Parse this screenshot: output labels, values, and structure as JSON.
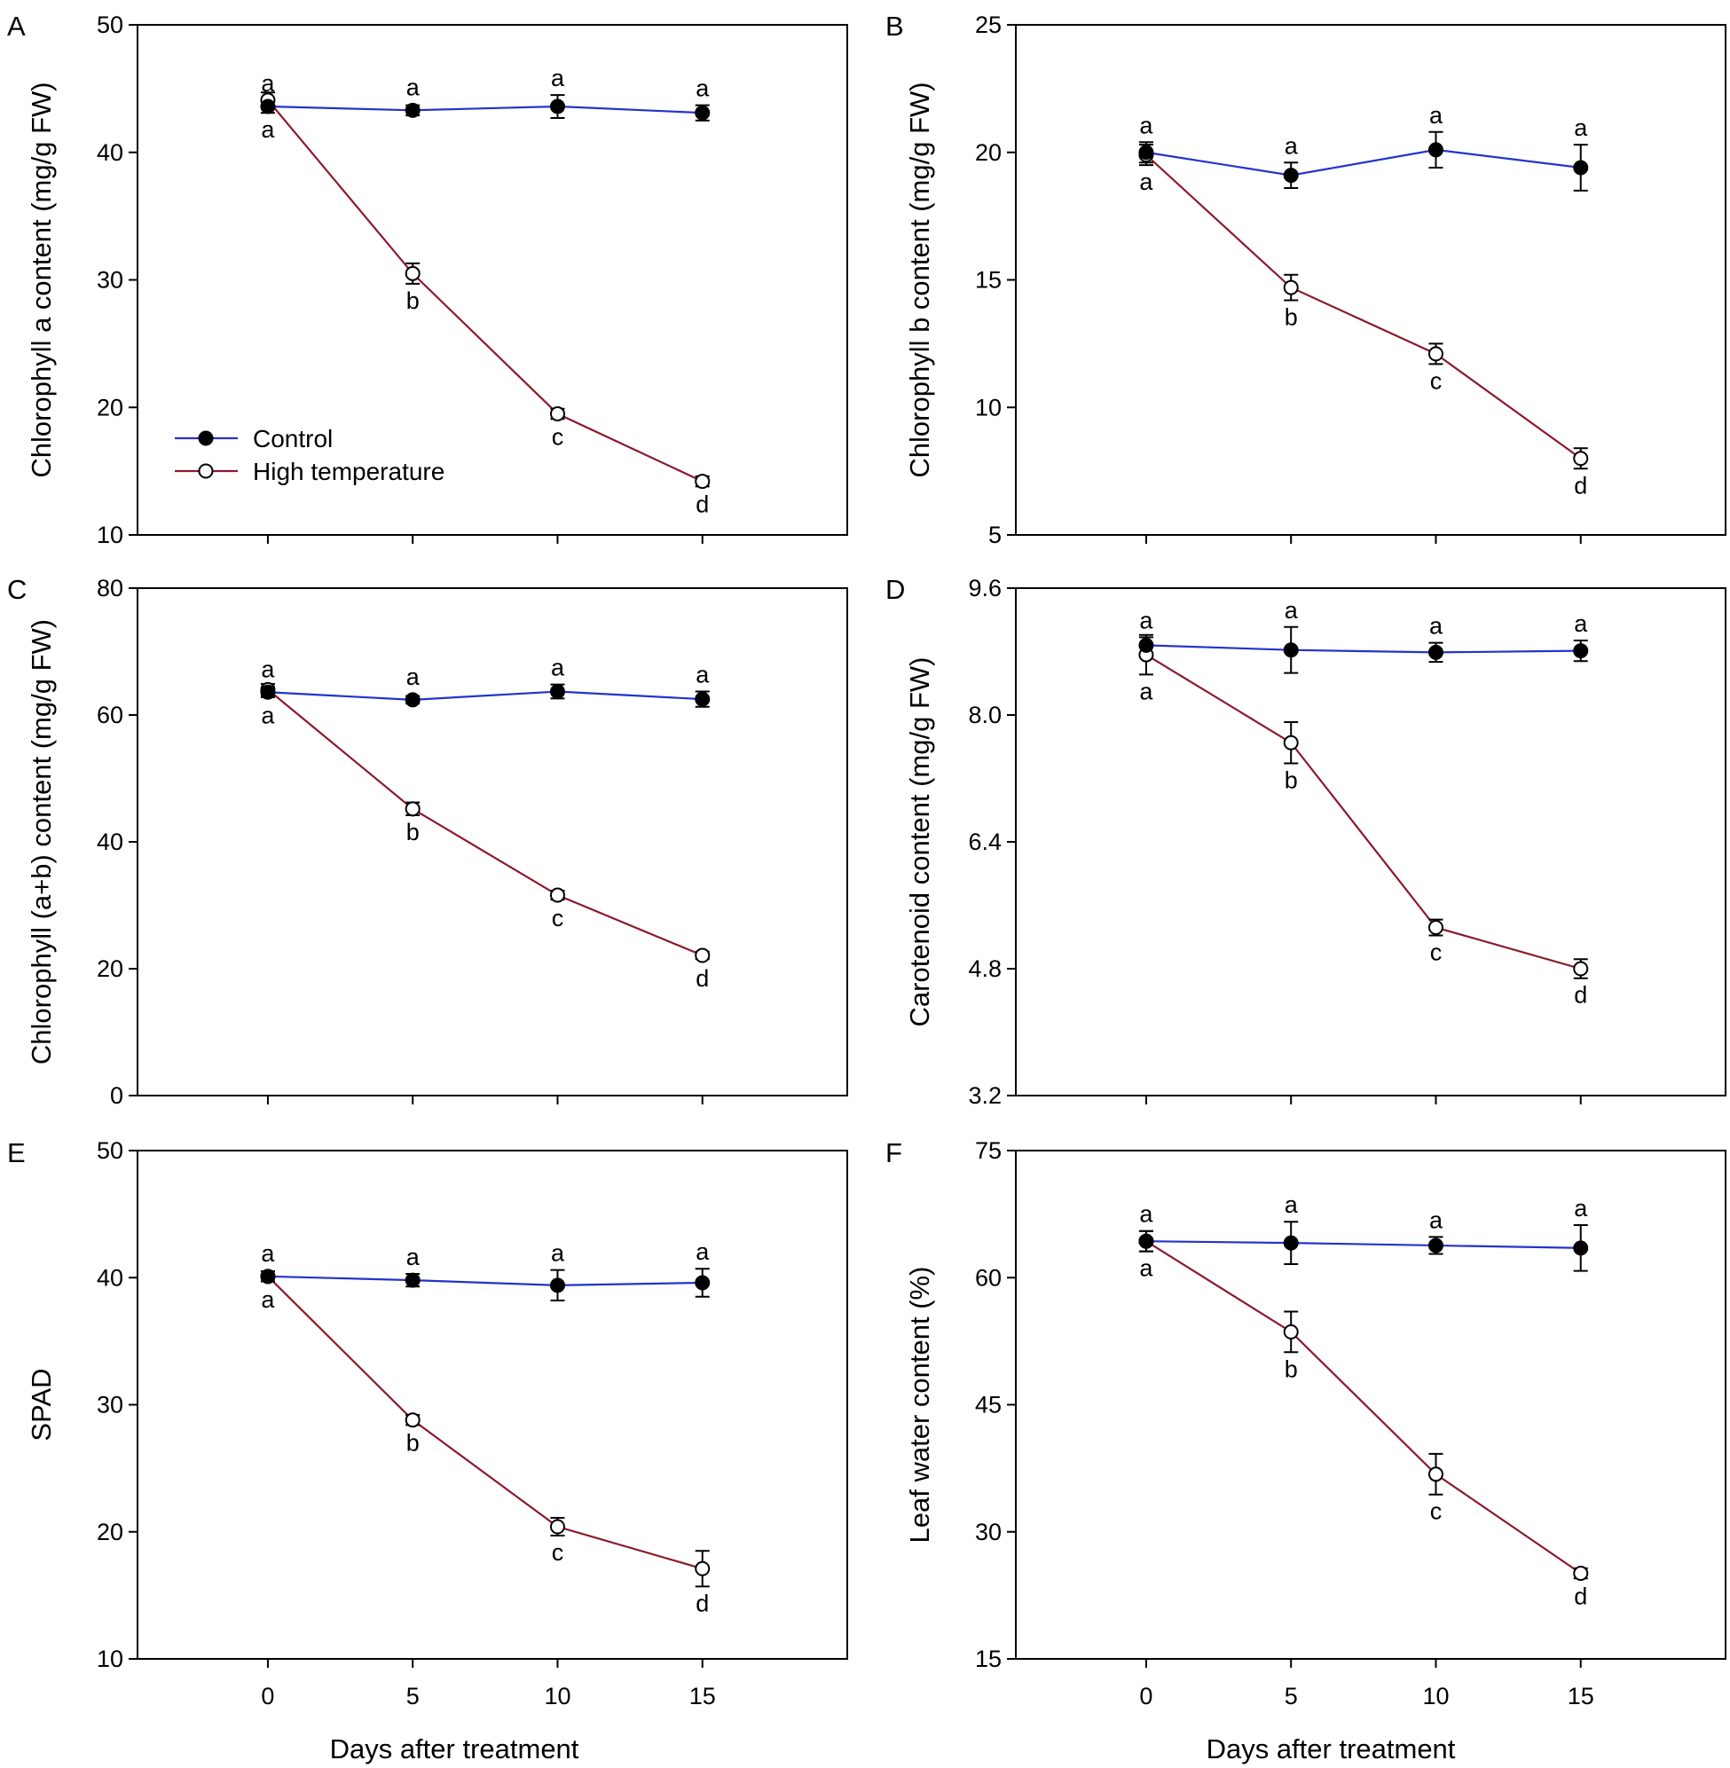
{
  "chart_data": [
    {
      "panel": "A",
      "type": "line",
      "ylabel": "Chlorophyll a content (mg/g FW)",
      "xlabel": "",
      "x": [
        0,
        5,
        10,
        15
      ],
      "xticks": [
        "0",
        "5",
        "10",
        "15"
      ],
      "xlim": [
        -4.5,
        20
      ],
      "ylim": [
        10,
        50
      ],
      "yticks": [
        "10",
        "20",
        "30",
        "40",
        "50"
      ],
      "series": [
        {
          "name": "Control",
          "values": [
            43.6,
            43.3,
            43.6,
            43.1
          ],
          "err": [
            0.5,
            0.4,
            0.9,
            0.6
          ],
          "letters": [
            "a",
            "a",
            "a",
            "a"
          ]
        },
        {
          "name": "High temperature",
          "values": [
            44.1,
            30.5,
            19.5,
            14.2
          ],
          "err": [
            0.6,
            0.8,
            0.4,
            0.4
          ],
          "letters": [
            "a",
            "b",
            "c",
            "d"
          ]
        }
      ]
    },
    {
      "panel": "B",
      "type": "line",
      "ylabel": "Chlorophyll b content (mg/g FW)",
      "xlabel": "",
      "x": [
        0,
        5,
        10,
        15
      ],
      "xticks": [
        "0",
        "5",
        "10",
        "15"
      ],
      "xlim": [
        -4.5,
        20
      ],
      "ylim": [
        5,
        25
      ],
      "yticks": [
        "5",
        "10",
        "15",
        "20",
        "25"
      ],
      "series": [
        {
          "name": "Control",
          "values": [
            20.0,
            19.1,
            20.1,
            19.4
          ],
          "err": [
            0.4,
            0.5,
            0.7,
            0.9
          ],
          "letters": [
            "a",
            "a",
            "a",
            "a"
          ]
        },
        {
          "name": "High temperature",
          "values": [
            19.9,
            14.7,
            12.1,
            8.0
          ],
          "err": [
            0.4,
            0.5,
            0.4,
            0.4
          ],
          "letters": [
            "a",
            "b",
            "c",
            "d"
          ]
        }
      ]
    },
    {
      "panel": "C",
      "type": "line",
      "ylabel": "Chlorophyll (a+b) content (mg/g FW)",
      "xlabel": "",
      "x": [
        0,
        5,
        10,
        15
      ],
      "xticks": [
        "0",
        "5",
        "10",
        "15"
      ],
      "xlim": [
        -4.5,
        20
      ],
      "ylim": [
        0,
        80
      ],
      "yticks": [
        "0",
        "20",
        "40",
        "60",
        "80"
      ],
      "series": [
        {
          "name": "Control",
          "values": [
            63.6,
            62.4,
            63.7,
            62.5
          ],
          "err": [
            0.8,
            0.6,
            1.1,
            1.2
          ],
          "letters": [
            "a",
            "a",
            "a",
            "a"
          ]
        },
        {
          "name": "High temperature",
          "values": [
            64.0,
            45.2,
            31.6,
            22.1
          ],
          "err": [
            0.9,
            1.0,
            0.7,
            0.6
          ],
          "letters": [
            "a",
            "b",
            "c",
            "d"
          ]
        }
      ]
    },
    {
      "panel": "D",
      "type": "line",
      "ylabel": "Carotenoid content (mg/g FW)",
      "xlabel": "",
      "x": [
        0,
        5,
        10,
        15
      ],
      "xticks": [
        "0",
        "5",
        "10",
        "15"
      ],
      "xlim": [
        -4.5,
        20
      ],
      "ylim": [
        3.2,
        9.6
      ],
      "yticks": [
        "3.2",
        "4.8",
        "6.4",
        "8.0",
        "9.6"
      ],
      "series": [
        {
          "name": "Control",
          "values": [
            8.88,
            8.82,
            8.79,
            8.81
          ],
          "err": [
            0.1,
            0.29,
            0.12,
            0.13
          ],
          "letters": [
            "a",
            "a",
            "a",
            "a"
          ]
        },
        {
          "name": "High temperature",
          "values": [
            8.76,
            7.65,
            5.32,
            4.8
          ],
          "err": [
            0.25,
            0.26,
            0.1,
            0.12
          ],
          "letters": [
            "a",
            "b",
            "c",
            "d"
          ]
        }
      ]
    },
    {
      "panel": "E",
      "type": "line",
      "ylabel": "SPAD",
      "xlabel": "Days after treatment",
      "x": [
        0,
        5,
        10,
        15
      ],
      "xticks": [
        "0",
        "5",
        "10",
        "15"
      ],
      "xlim": [
        -4.5,
        20
      ],
      "ylim": [
        10,
        50
      ],
      "yticks": [
        "10",
        "20",
        "30",
        "40",
        "50"
      ],
      "series": [
        {
          "name": "Control",
          "values": [
            40.1,
            39.8,
            39.4,
            39.6
          ],
          "err": [
            0.4,
            0.5,
            1.2,
            1.1
          ],
          "letters": [
            "a",
            "a",
            "a",
            "a"
          ]
        },
        {
          "name": "High temperature",
          "values": [
            40.1,
            28.8,
            20.4,
            17.1
          ],
          "err": [
            0.4,
            0.4,
            0.7,
            1.4
          ],
          "letters": [
            "a",
            "b",
            "c",
            "d"
          ]
        }
      ]
    },
    {
      "panel": "F",
      "type": "line",
      "ylabel": "Leaf water content (%)",
      "xlabel": "Days after treatment",
      "x": [
        0,
        5,
        10,
        15
      ],
      "xticks": [
        "0",
        "5",
        "10",
        "15"
      ],
      "xlim": [
        -4.5,
        20
      ],
      "ylim": [
        15,
        75
      ],
      "yticks": [
        "15",
        "30",
        "45",
        "60",
        "75"
      ],
      "series": [
        {
          "name": "Control",
          "values": [
            64.3,
            64.1,
            63.8,
            63.5
          ],
          "err": [
            1.2,
            2.5,
            1.0,
            2.7
          ],
          "letters": [
            "a",
            "a",
            "a",
            "a"
          ]
        },
        {
          "name": "High temperature",
          "values": [
            64.3,
            53.6,
            36.8,
            25.1
          ],
          "err": [
            1.2,
            2.4,
            2.4,
            0.6
          ],
          "letters": [
            "a",
            "b",
            "c",
            "d"
          ]
        }
      ]
    }
  ],
  "legend": {
    "items": [
      {
        "label": "Control",
        "color": "#2233cc",
        "marker": "filled-circle"
      },
      {
        "label": "High temperature",
        "color": "#8b1a2b",
        "marker": "open-circle"
      }
    ],
    "panel": "A",
    "placement": "lower-left"
  },
  "colors": {
    "control": "#2233cc",
    "high_temperature": "#8b1a2b",
    "marker": "#000000"
  }
}
